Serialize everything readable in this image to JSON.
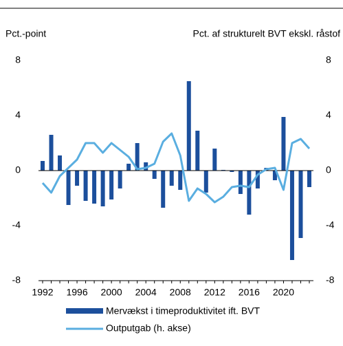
{
  "chart_data": {
    "type": "bar_line",
    "ylabel": "Pct.-point",
    "y2label": "Pct. af strukturelt BVT ekskl. råstof",
    "x": [
      1992,
      1993,
      1994,
      1995,
      1996,
      1997,
      1998,
      1999,
      2000,
      2001,
      2002,
      2003,
      2004,
      2005,
      2006,
      2007,
      2008,
      2009,
      2010,
      2011,
      2012,
      2013,
      2014,
      2015,
      2016,
      2017,
      2018,
      2019,
      2020,
      2021,
      2022,
      2023
    ],
    "xlim": [
      1992,
      2023
    ],
    "xticks": [
      1992,
      1996,
      2000,
      2004,
      2008,
      2012,
      2016,
      2020
    ],
    "ylim": [
      -8,
      8
    ],
    "yticks": [
      -8,
      -4,
      0,
      4,
      8
    ],
    "y2lim": [
      -8,
      8
    ],
    "y2ticks": [
      -8,
      -4,
      0,
      4,
      8
    ],
    "series": [
      {
        "name": "Mervækst i timeproduktivitet ift. BVT",
        "type": "bar",
        "color": "#1c4f9c",
        "values": [
          0.7,
          2.6,
          1.1,
          -2.5,
          -1.1,
          -2.2,
          -2.4,
          -2.6,
          -2.1,
          -1.3,
          0.5,
          2.0,
          0.6,
          -0.6,
          -2.7,
          -1.1,
          -1.4,
          6.5,
          2.9,
          -1.6,
          1.6,
          0.05,
          -0.1,
          -1.7,
          -3.2,
          -1.3,
          0.2,
          -0.7,
          3.9,
          -6.5,
          -4.9,
          -1.2
        ]
      },
      {
        "name": "Outputgab (h. akse)",
        "type": "line",
        "axis": "y2",
        "color": "#5aaee0",
        "values": [
          -0.9,
          -1.6,
          -0.4,
          0.2,
          0.8,
          2.0,
          2.0,
          1.3,
          2.0,
          1.5,
          1.0,
          0.1,
          0.2,
          0.5,
          2.1,
          2.7,
          1.1,
          -2.2,
          -1.3,
          -1.7,
          -2.3,
          -1.9,
          -1.2,
          -1.1,
          -1.2,
          -0.3,
          0.1,
          0.2,
          -1.4,
          2.0,
          2.3,
          1.6
        ]
      }
    ]
  }
}
